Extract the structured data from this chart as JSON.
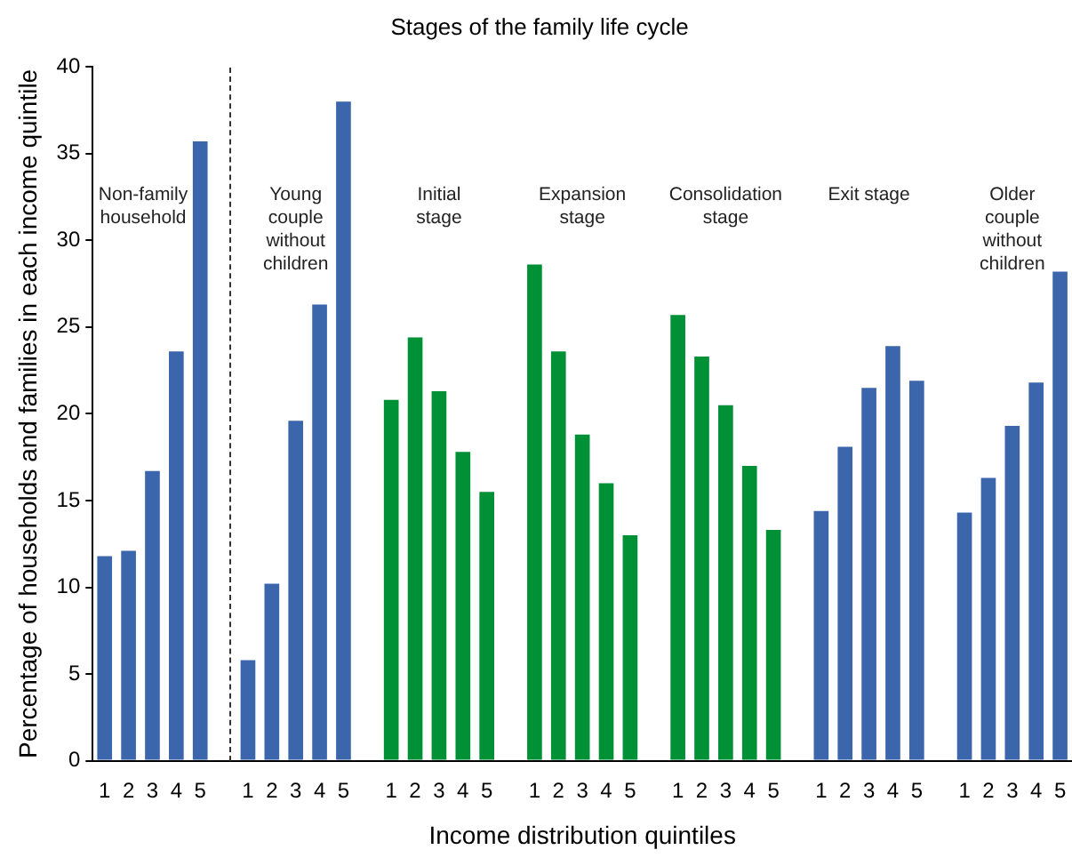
{
  "chart_data": {
    "type": "bar",
    "title": "Stages of the family life cycle",
    "xlabel": "Income distribution quintiles",
    "ylabel": "Percentage of households and families in each income quintile",
    "categories": [
      "1",
      "2",
      "3",
      "4",
      "5",
      null,
      "1",
      "2",
      "3",
      "4",
      "5",
      null,
      "1",
      "2",
      "3",
      "4",
      "5",
      null,
      "1",
      "2",
      "3",
      "4",
      "5",
      null,
      "1",
      "2",
      "3",
      "4",
      "5",
      null,
      "1",
      "2",
      "3",
      "4",
      "5",
      null,
      "1",
      "2",
      "3",
      "4",
      "5"
    ],
    "values": [
      11.8,
      12.1,
      16.7,
      23.6,
      35.7,
      null,
      5.8,
      10.2,
      19.6,
      26.3,
      38.0,
      null,
      20.8,
      24.4,
      21.3,
      17.8,
      15.5,
      null,
      28.6,
      23.6,
      18.8,
      16.0,
      13.0,
      null,
      25.7,
      23.3,
      20.5,
      17.0,
      13.3,
      null,
      14.4,
      18.1,
      21.5,
      23.9,
      21.9,
      null,
      14.3,
      16.3,
      19.3,
      21.8,
      28.2
    ],
    "colors": [
      "#3c66ab",
      "#3c66ab",
      "#3c66ab",
      "#3c66ab",
      "#3c66ab",
      "#ffffff",
      "#3c66ab",
      "#3c66ab",
      "#3c66ab",
      "#3c66ab",
      "#3c66ab",
      "#ffffff",
      "#009036",
      "#009036",
      "#009036",
      "#009036",
      "#009036",
      "#ffffff",
      "#009036",
      "#009036",
      "#009036",
      "#009036",
      "#009036",
      "#ffffff",
      "#009036",
      "#009036",
      "#009036",
      "#009036",
      "#009036",
      "#ffffff",
      "#3c66ab",
      "#3c66ab",
      "#3c66ab",
      "#3c66ab",
      "#3c66ab",
      "#ffffff",
      "#3c66ab",
      "#3c66ab",
      "#3c66ab",
      "#3c66ab",
      "#3c66ab"
    ],
    "annotations": [
      "Non-family\nhousehold",
      "Young\ncouple\nwithout\nchildren",
      "Initial\nstage",
      "Expansion\nstage",
      "Consolidation\nstage",
      "Exit stage",
      "Older\ncouple\nwithout\nchildren"
    ],
    "ylim": [
      0,
      40
    ],
    "yticks": [
      0,
      5,
      10,
      15,
      20,
      25,
      30,
      35,
      40
    ],
    "grid": false,
    "legend": false
  }
}
